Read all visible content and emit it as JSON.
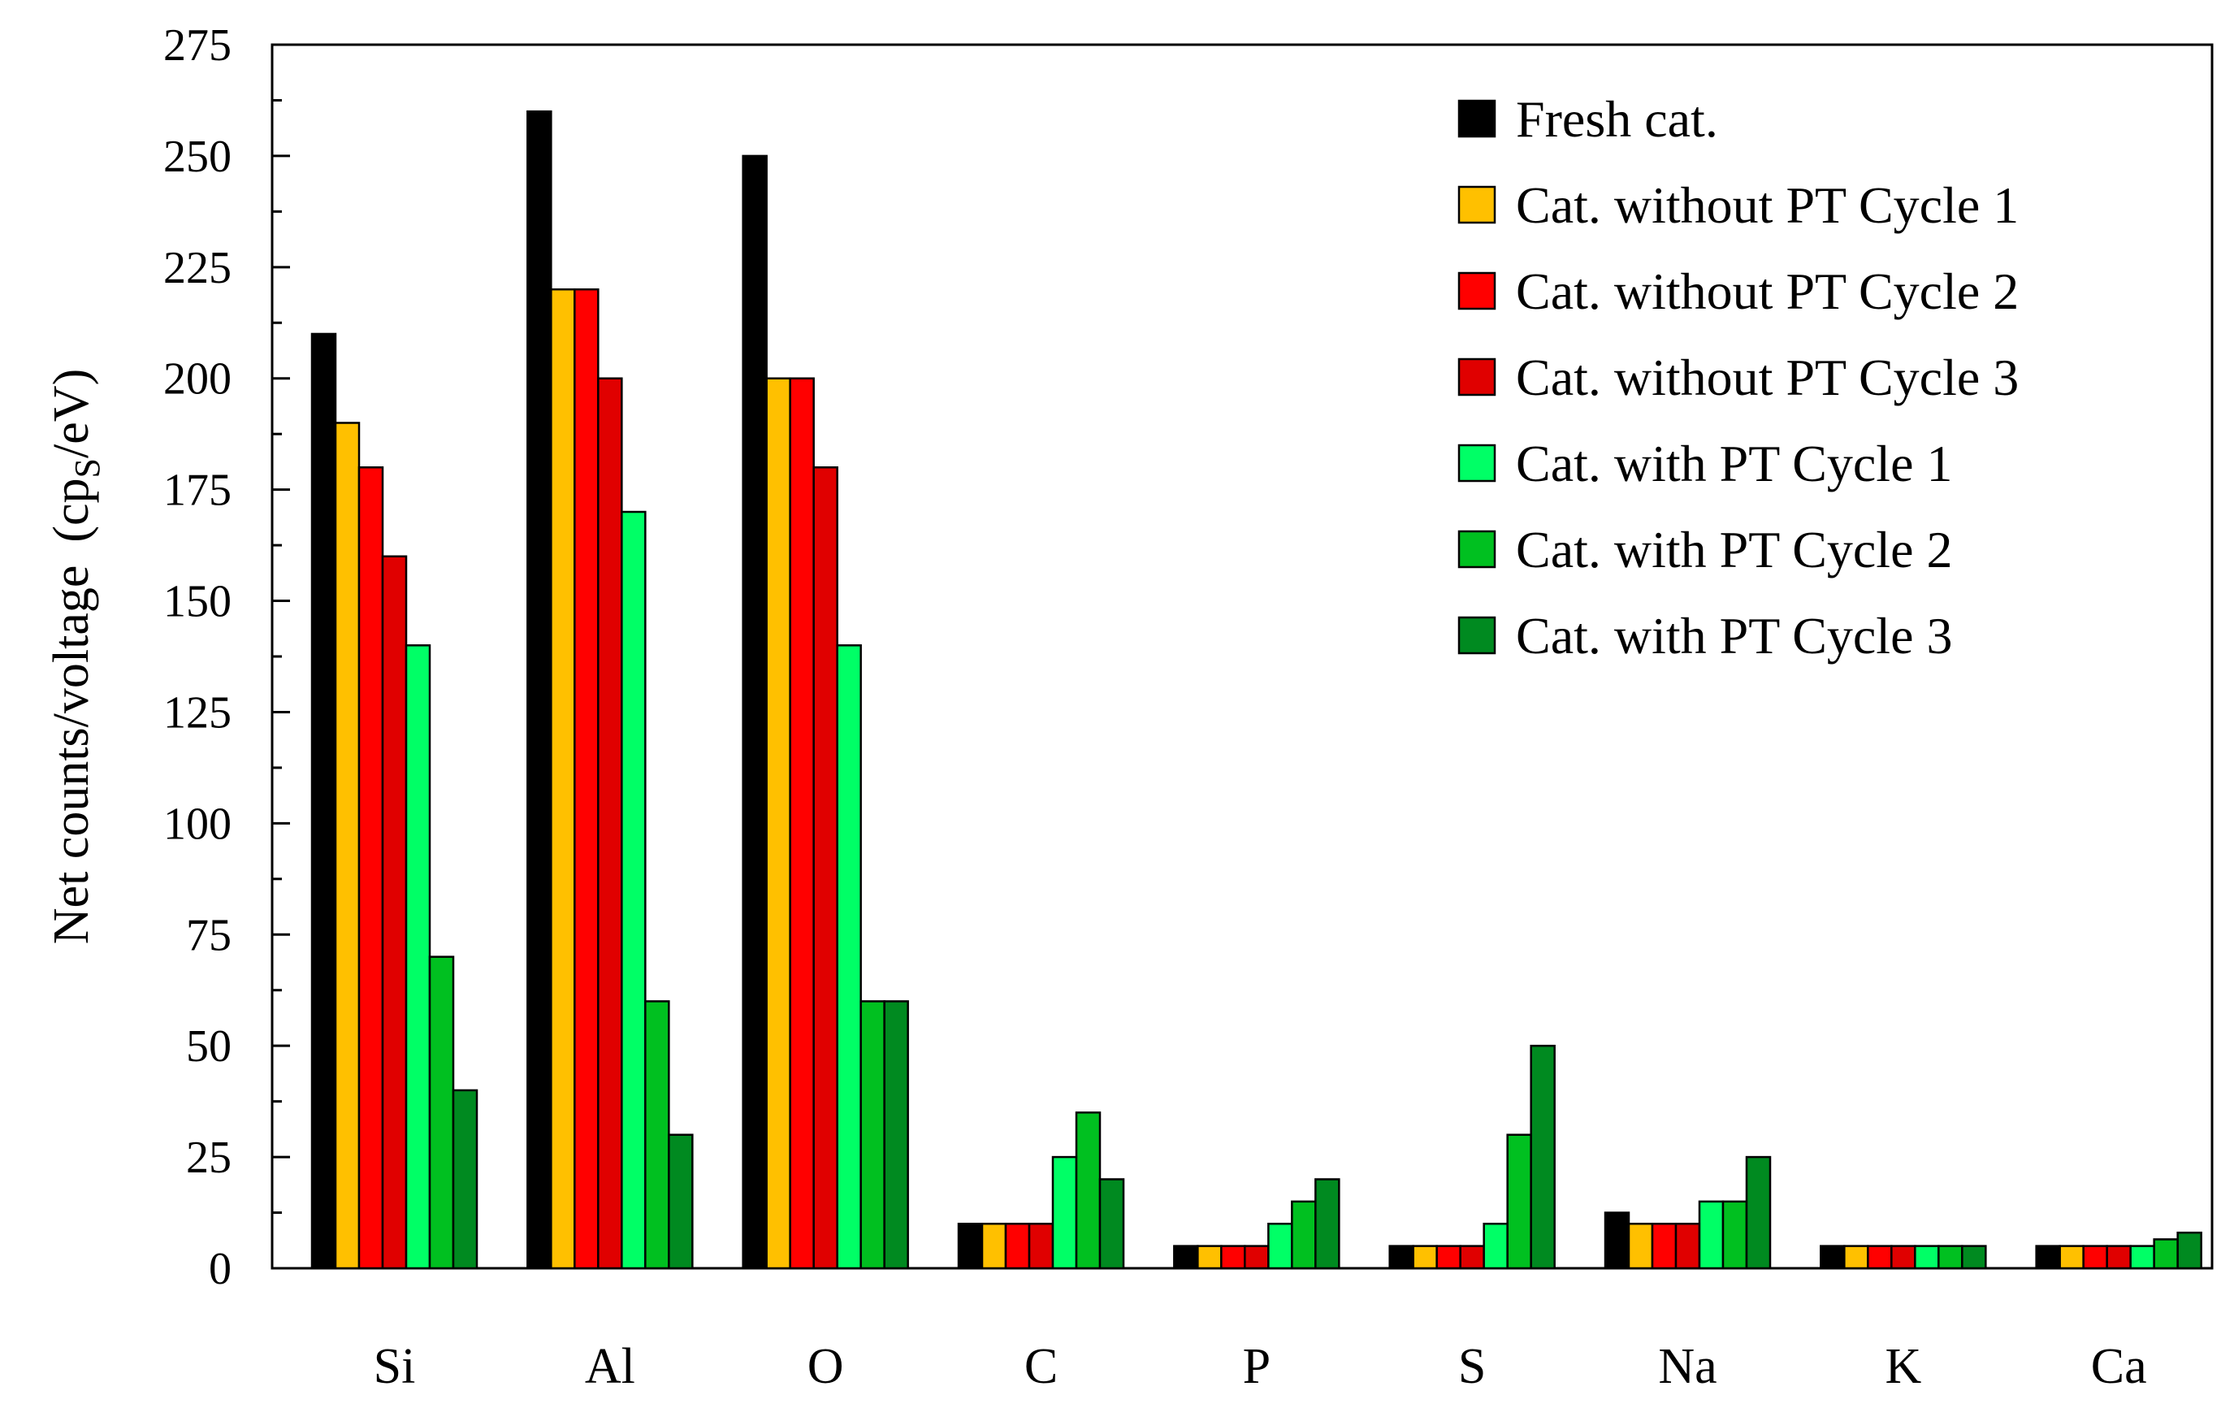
{
  "chart_data": {
    "type": "bar",
    "title": "",
    "xlabel": "",
    "ylabel": "Net counts/voltage",
    "ylabel_unit_prefix": "(cp",
    "ylabel_unit_sub": "S",
    "ylabel_unit_suffix": "/eV)",
    "ylim": [
      0,
      275
    ],
    "yticks": [
      0,
      25,
      50,
      75,
      100,
      125,
      150,
      175,
      200,
      225,
      250,
      275
    ],
    "grid": false,
    "legend_position": "top-right",
    "categories": [
      "Si",
      "Al",
      "O",
      "C",
      "P",
      "S",
      "Na",
      "K",
      "Ca"
    ],
    "series": [
      {
        "name": "Fresh cat.",
        "color": "#000000",
        "values": [
          210,
          260,
          250,
          10,
          5,
          5,
          12.5,
          5,
          5
        ]
      },
      {
        "name": "Cat. without PT Cycle 1",
        "color": "#FFC000",
        "values": [
          190,
          220,
          200,
          10,
          5,
          5,
          10,
          5,
          5
        ]
      },
      {
        "name": "Cat. without PT Cycle 2",
        "color": "#FF0000",
        "values": [
          180,
          220,
          200,
          10,
          5,
          5,
          10,
          5,
          5
        ]
      },
      {
        "name": "Cat. without PT Cycle 3",
        "color": "#E00000",
        "values": [
          160,
          200,
          180,
          10,
          5,
          5,
          10,
          5,
          5
        ]
      },
      {
        "name": "Cat. with PT Cycle 1",
        "color": "#00FF66",
        "values": [
          140,
          170,
          140,
          25,
          10,
          10,
          15,
          5,
          5
        ]
      },
      {
        "name": "Cat. with PT Cycle 2",
        "color": "#00C020",
        "values": [
          70,
          60,
          60,
          35,
          15,
          30,
          15,
          5,
          6.5
        ]
      },
      {
        "name": "Cat. with PT Cycle 3",
        "color": "#008A20",
        "values": [
          40,
          30,
          60,
          20,
          20,
          50,
          25,
          5,
          8
        ]
      }
    ]
  }
}
